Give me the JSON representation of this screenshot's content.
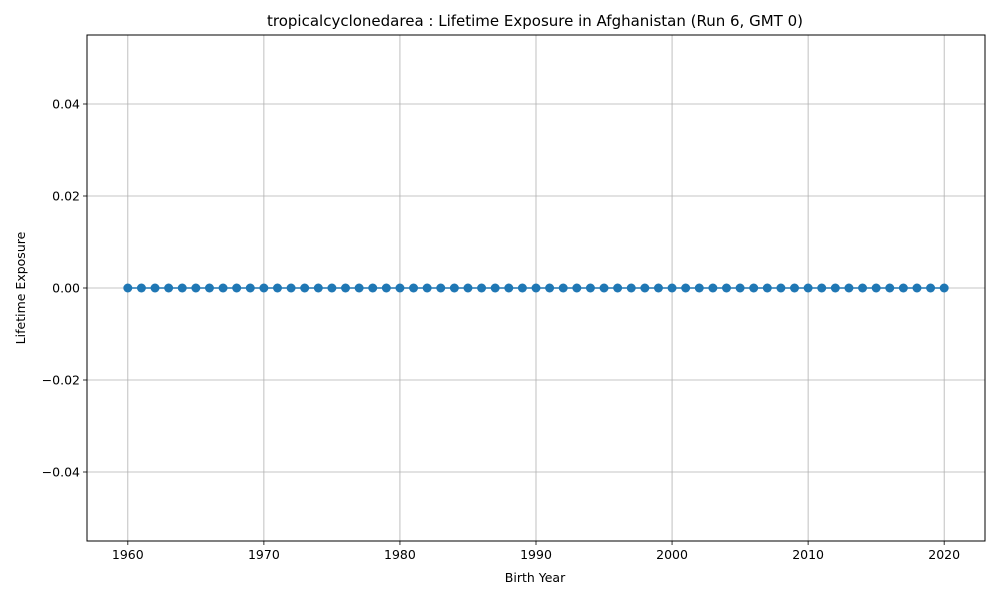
{
  "chart_data": {
    "type": "line",
    "title": "tropicalcyclonedarea : Lifetime Exposure in Afghanistan (Run 6, GMT 0)",
    "xlabel": "Birth Year",
    "ylabel": "Lifetime Exposure",
    "xlim": [
      1957,
      2023
    ],
    "ylim": [
      -0.055,
      0.055
    ],
    "grid": true,
    "marker": "circle",
    "color": "#1f77b4",
    "x_ticks": [
      1960,
      1970,
      1980,
      1990,
      2000,
      2010,
      2020
    ],
    "x_tick_labels": [
      "1960",
      "1970",
      "1980",
      "1990",
      "2000",
      "2010",
      "2020"
    ],
    "y_ticks": [
      -0.04,
      -0.02,
      0.0,
      0.02,
      0.04
    ],
    "y_tick_labels": [
      "−0.04",
      "−0.02",
      "0.00",
      "0.02",
      "0.04"
    ],
    "series": [
      {
        "x_start": 1960,
        "x_end": 2020,
        "x_step": 1,
        "constant_value": 0.0
      }
    ]
  }
}
